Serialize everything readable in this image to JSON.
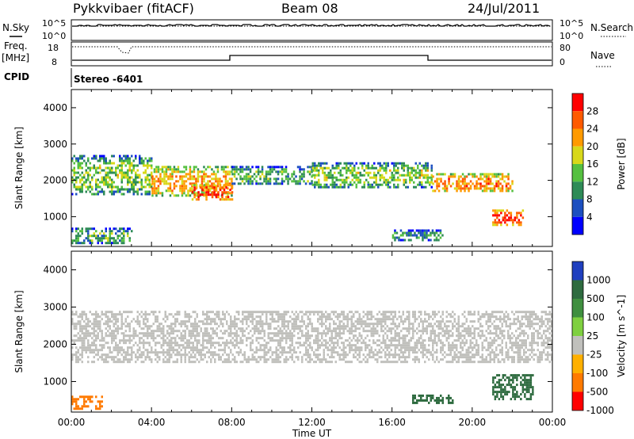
{
  "header": {
    "station": "Pykkvibaer (fitACF)",
    "beam": "Beam 08",
    "date": "24/Jul/2011"
  },
  "status_panel": {
    "nsky_label": "N.Sky",
    "nsearch_label": "N.Search",
    "left_ticks": [
      "10^5",
      "10^0"
    ],
    "right_ticks": [
      "10^5",
      "10^0"
    ],
    "freq_label": "Freq.",
    "freq_unit": "[MHz]",
    "freq_ticks": [
      "18",
      "8"
    ],
    "nave_label": "Nave",
    "nave_ticks": [
      "80",
      "0"
    ],
    "cpid_label": "CPID",
    "cpid_value": "Stereo  -6401"
  },
  "chart_data": [
    {
      "type": "heatmap",
      "title": "Power",
      "ylabel": "Slant Range [km]",
      "xlabel": "Time UT",
      "x_ticks": [
        "00:00",
        "04:00",
        "08:00",
        "12:00",
        "16:00",
        "20:00",
        "00:00"
      ],
      "xlim_hours": [
        0,
        24
      ],
      "ylim": [
        180,
        4500
      ],
      "y_ticks": [
        1000,
        2000,
        3000,
        4000
      ],
      "colorbar": {
        "label": "Power [dB]",
        "ticks": [
          "4",
          "8",
          "12",
          "16",
          "20",
          "24",
          "28"
        ],
        "colors": [
          "#0000ff",
          "#1c4fc0",
          "#2e8b57",
          "#55c040",
          "#d8d81a",
          "#ff9a00",
          "#ff5a00",
          "#ff0000"
        ],
        "range": [
          0,
          30
        ]
      },
      "bands": [
        {
          "t": [
            0,
            4
          ],
          "r": [
            1600,
            2700
          ],
          "level": 14
        },
        {
          "t": [
            4,
            8
          ],
          "r": [
            1600,
            2400
          ],
          "level": 20
        },
        {
          "t": [
            6,
            8
          ],
          "r": [
            1500,
            1900
          ],
          "level": 26
        },
        {
          "t": [
            8,
            12
          ],
          "r": [
            1900,
            2400
          ],
          "level": 12
        },
        {
          "t": [
            12,
            18
          ],
          "r": [
            1800,
            2500
          ],
          "level": 14
        },
        {
          "t": [
            18,
            22
          ],
          "r": [
            1700,
            2200
          ],
          "level": 22
        },
        {
          "t": [
            21,
            22.5
          ],
          "r": [
            800,
            1200
          ],
          "level": 26
        },
        {
          "t": [
            0,
            3
          ],
          "r": [
            280,
            700
          ],
          "level": 12
        },
        {
          "t": [
            16,
            18.5
          ],
          "r": [
            350,
            650
          ],
          "level": 10
        }
      ]
    },
    {
      "type": "heatmap",
      "title": "Velocity",
      "ylabel": "Slant Range [km]",
      "xlabel": "Time UT",
      "x_ticks": [
        "00:00",
        "04:00",
        "08:00",
        "12:00",
        "16:00",
        "20:00",
        "00:00"
      ],
      "xlim_hours": [
        0,
        24
      ],
      "ylim": [
        180,
        4500
      ],
      "y_ticks": [
        1000,
        2000,
        3000,
        4000
      ],
      "colorbar": {
        "label": "Velocity [m s^-1]",
        "ticks": [
          "1000",
          "500",
          "100",
          "25",
          "-25",
          "-100",
          "-500",
          "-1000"
        ],
        "colors": [
          "#1f3fbf",
          "#2e6b3f",
          "#3f8f3f",
          "#7fd040",
          "#c0c0bc",
          "#ffb000",
          "#ff7a00",
          "#ff0000"
        ]
      },
      "bands": [
        {
          "t": [
            0,
            24
          ],
          "r": [
            1500,
            2900
          ],
          "level": 0
        },
        {
          "t": [
            0,
            1.5
          ],
          "r": [
            280,
            620
          ],
          "level": -300
        },
        {
          "t": [
            21,
            23
          ],
          "r": [
            500,
            1200
          ],
          "level": 300
        },
        {
          "t": [
            17,
            19
          ],
          "r": [
            450,
            650
          ],
          "level": 300
        }
      ]
    }
  ]
}
